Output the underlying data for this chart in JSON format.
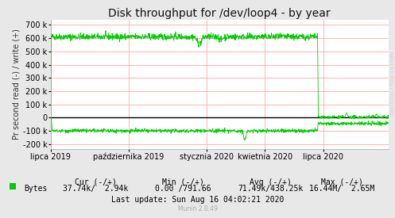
{
  "title": "Disk throughput for /dev/loop4 - by year",
  "ylabel": "Pr second read (-) / write (+)",
  "watermark": "RRDTOOL / TOBI OETIKER",
  "munin_version": "Munin 2.0.49",
  "legend_label": "Bytes",
  "cur_label": "Cur (-/+)",
  "min_label": "Min (-/+)",
  "avg_label": "Avg (-/+)",
  "max_label": "Max (-/+)",
  "cur_val": "37.74k/  2.94k",
  "min_val": "0.00 /791.66",
  "avg_val": "71.49k/438.25k",
  "max_val": "16.44M/  2.65M",
  "last_update": "Last update: Sun Aug 16 04:02:21 2020",
  "bg_color": "#e8e8e8",
  "plot_bg_color": "#ffffff",
  "grid_color": "#ff9999",
  "line_color": "#00cc00",
  "zero_line_color": "#000000",
  "x_tick_labels": [
    "lipca 2019",
    "października 2019",
    "stycznia 2020",
    "kwietnia 2020",
    "lipca 2020"
  ],
  "x_tick_pos": [
    0.0,
    0.231,
    0.462,
    0.635,
    0.808
  ],
  "y_ticks": [
    -200000,
    -100000,
    0,
    100000,
    200000,
    300000,
    400000,
    500000,
    600000,
    700000
  ],
  "ylim": [
    -240000,
    740000
  ],
  "title_fontsize": 10,
  "axis_label_fontsize": 7,
  "tick_fontsize": 7,
  "legend_fontsize": 7,
  "annotation_color": "#aaaaaa",
  "watermark_color": "#cccccc"
}
